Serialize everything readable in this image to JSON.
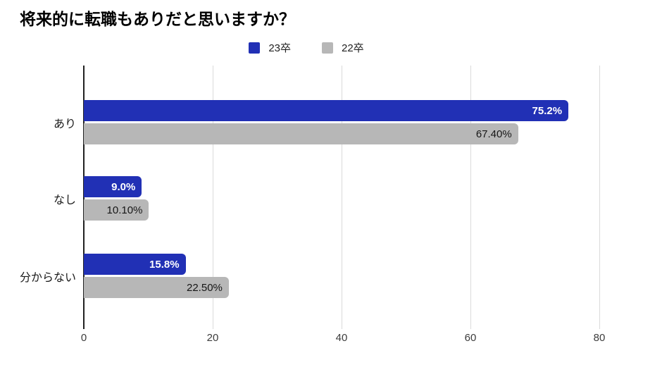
{
  "chart_data": {
    "type": "bar",
    "orientation": "horizontal",
    "title": "将来的に転職もありだと思いますか？",
    "categories": [
      "あり",
      "なし",
      "分からない"
    ],
    "series": [
      {
        "name": "23卒",
        "color": "#2130b5",
        "values": [
          75.2,
          9.0,
          15.8
        ],
        "labels": [
          "75.2%",
          "9.0%",
          "15.8%"
        ]
      },
      {
        "name": "22卒",
        "color": "#b7b7b7",
        "values": [
          67.4,
          10.1,
          22.5
        ],
        "labels": [
          "67.40%",
          "10.10%",
          "22.50%"
        ]
      }
    ],
    "xlabel": "",
    "ylabel": "",
    "x_ticks": [
      0,
      20,
      40,
      60,
      80
    ],
    "xlim": [
      0,
      89.3
    ],
    "grid": true,
    "legend_position": "top",
    "value_label_color_series1": "#ffffff",
    "value_label_color_series2": "#161616"
  }
}
